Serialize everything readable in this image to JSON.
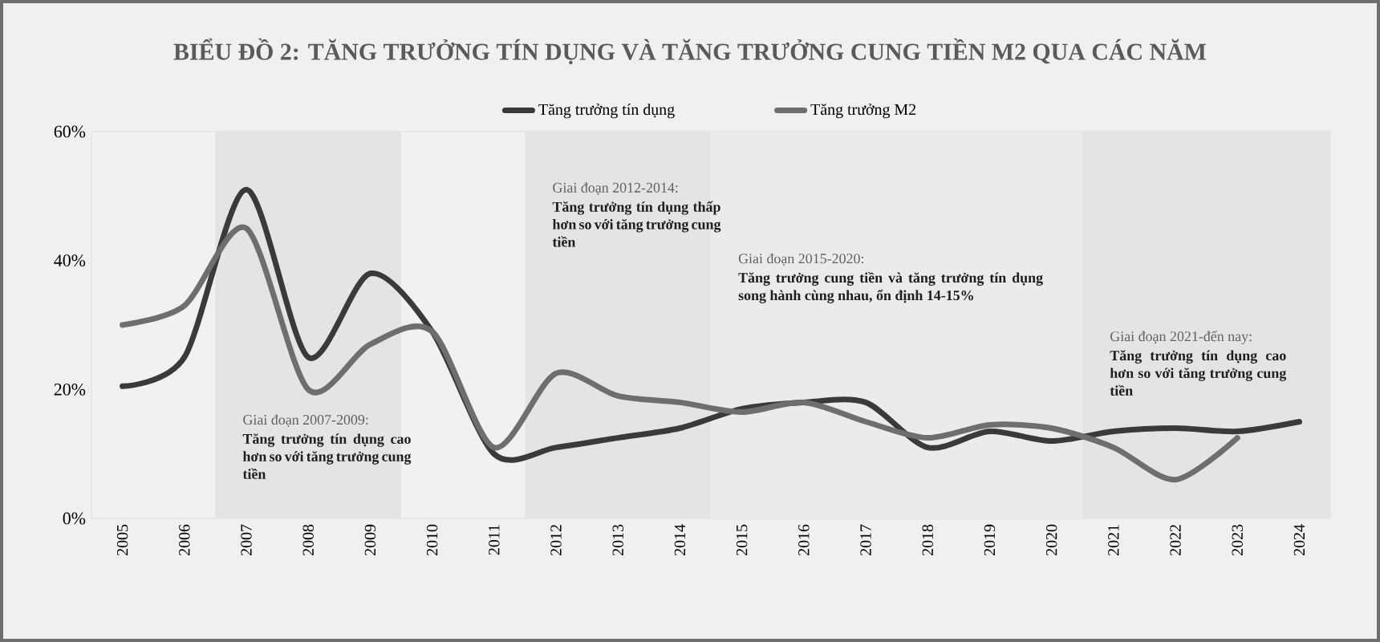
{
  "chart_data": {
    "type": "line",
    "title": "BIỂU ĐỒ 2: TĂNG TRƯỞNG TÍN DỤNG VÀ TĂNG TRƯỞNG CUNG TIỀN M2 QUA CÁC NĂM",
    "categories": [
      "2005",
      "2006",
      "2007",
      "2008",
      "2009",
      "2010",
      "2011",
      "2012",
      "2013",
      "2014",
      "2015",
      "2016",
      "2017",
      "2018",
      "2019",
      "2020",
      "2021",
      "2022",
      "2023",
      "2024"
    ],
    "series": [
      {
        "name": "Tăng trưởng tín dụng",
        "color": "#3a3a3a",
        "values": [
          20.5,
          25,
          51,
          25,
          38,
          29,
          10,
          11,
          12.5,
          14,
          17,
          18,
          18,
          11,
          13.5,
          12,
          13.5,
          14,
          13.5,
          15
        ]
      },
      {
        "name": "Tăng trưởng M2",
        "color": "#6e6e6e",
        "values": [
          30,
          33,
          45,
          20,
          27,
          29,
          11,
          22.5,
          19,
          18,
          16.5,
          18,
          15,
          12.5,
          14.5,
          14,
          11,
          6,
          12.5,
          null
        ]
      }
    ],
    "ylim": [
      0,
      60
    ],
    "yticks": [
      {
        "value": 0,
        "label": "0%"
      },
      {
        "value": 20,
        "label": "20%"
      },
      {
        "value": 40,
        "label": "40%"
      },
      {
        "value": 60,
        "label": "60%"
      }
    ],
    "bands": [
      {
        "axis": "x",
        "from": "2007",
        "to": "2009",
        "label": "Giai đoạn 2007-2009:",
        "color": "#e4e4e4"
      },
      {
        "axis": "x",
        "from": "2012",
        "to": "2014",
        "label": "Giai đoạn 2012-2014:",
        "color": "#e4e4e4"
      },
      {
        "axis": "x",
        "from": "2015",
        "to": "2020",
        "label": "Giai đoạn 2015-2020:",
        "color": "#ebebeb"
      },
      {
        "axis": "x",
        "from": "2021",
        "to": "2024",
        "label": "Giai đoạn 2021-đến nay:",
        "color": "#e4e4e4"
      }
    ],
    "annotations": [
      "Tăng trưởng tín dụng cao hơn so với tăng trưởng cung tiền",
      "Tăng trưởng tín dụng thấp hơn so với tăng trưởng cung tiền",
      "Tăng trưởng cung tiền và tăng trưởng tín dụng song hành cùng nhau, ổn định 14-15%",
      "Tăng trưởng tín dụng cao hơn so với tăng trưởng cung tiền"
    ],
    "legend": "top",
    "grid": false,
    "marker": "none",
    "line_style": "solid"
  }
}
